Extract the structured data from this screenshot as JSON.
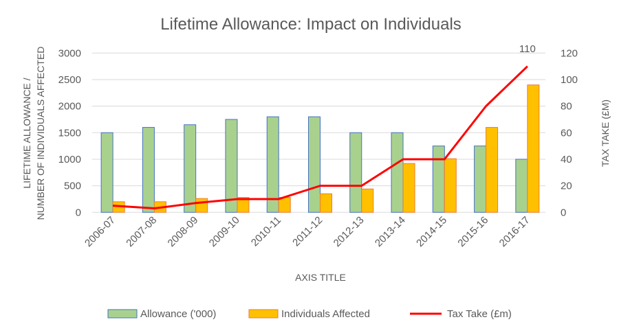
{
  "chart_data": {
    "type": "bar+line",
    "title": "Lifetime Allowance: Impact on Individuals",
    "xlabel": "AXIS TITLE",
    "ylabel_lines": [
      "LIFETIME ALLOWANCE /",
      "NUMBER OF INDIVIDUALS AFFECTED"
    ],
    "y2label": "TAX TAKE (£M)",
    "categories": [
      "2006-07",
      "2007-08",
      "2008-09",
      "2009-10",
      "2010-11",
      "2011-12",
      "2012-13",
      "2013-14",
      "2014-15",
      "2015-16",
      "2016-17"
    ],
    "ylim": [
      0,
      3000
    ],
    "yticks": [
      0,
      500,
      1000,
      1500,
      2000,
      2500,
      3000
    ],
    "y2lim": [
      0,
      120
    ],
    "y2ticks": [
      0,
      20,
      40,
      60,
      80,
      100,
      120
    ],
    "grid": true,
    "legend_position": "bottom",
    "series": [
      {
        "name": "Allowance ('000)",
        "type": "bar",
        "axis": "left",
        "color": "#a9d18e",
        "border": "#4472c4",
        "values": [
          1500,
          1600,
          1650,
          1750,
          1800,
          1800,
          1500,
          1500,
          1250,
          1250,
          1000
        ]
      },
      {
        "name": "Individuals Affected",
        "type": "bar",
        "axis": "left",
        "color": "#ffc000",
        "border": "#ed7d31",
        "values": [
          200,
          200,
          260,
          280,
          280,
          350,
          440,
          920,
          1010,
          1600,
          2400
        ]
      },
      {
        "name": "Tax Take (£m)",
        "type": "line",
        "axis": "right",
        "color": "#ff0000",
        "values": [
          5,
          3,
          7,
          10,
          10,
          20,
          20,
          40,
          40,
          80,
          110
        ]
      }
    ],
    "annotations": [
      {
        "category": "2016-17",
        "series": "Tax Take (£m)",
        "text": "110"
      }
    ]
  }
}
